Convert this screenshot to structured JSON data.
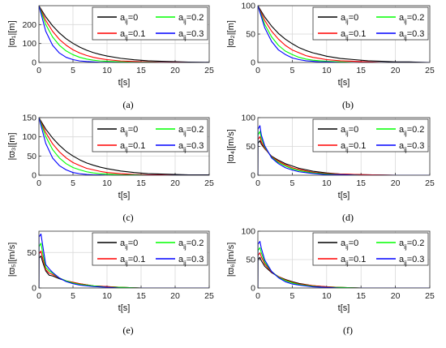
{
  "colors": {
    "a0": "#000000",
    "a01": "#ff0000",
    "a02": "#00ff00",
    "a03": "#0000ff",
    "grid": "#d8d8d8"
  },
  "chart_data": [
    {
      "type": "line",
      "caption": "(a)",
      "xlabel": "t[s]",
      "ylabel": "|ϖ₁|[m]",
      "xlim": [
        0,
        25
      ],
      "ylim": [
        0,
        300
      ],
      "xticks": [
        "0",
        "5",
        "10",
        "15",
        "20",
        "25"
      ],
      "yticks": [
        "0",
        "100",
        "200"
      ],
      "grid": true,
      "legend_position": "top-right",
      "series": [
        {
          "name": "a_ij=0",
          "color": "#000000",
          "x": [
            0,
            1,
            2,
            3,
            4,
            5,
            6,
            7,
            8,
            9,
            10,
            12,
            14,
            16,
            18,
            20,
            22,
            25
          ],
          "y": [
            300,
            241,
            194,
            156,
            125,
            101,
            81,
            65,
            52,
            42,
            34,
            22,
            14,
            9,
            6,
            4,
            2,
            1
          ]
        },
        {
          "name": "a_ij=0.1",
          "color": "#ff0000",
          "x": [
            0,
            1,
            2,
            3,
            4,
            5,
            6,
            7,
            8,
            9,
            10,
            12,
            14,
            16,
            18,
            20,
            22,
            25
          ],
          "y": [
            300,
            222,
            165,
            122,
            91,
            67,
            50,
            37,
            27,
            20,
            15,
            8,
            5,
            3,
            1,
            1,
            0,
            0
          ]
        },
        {
          "name": "a_ij=0.2",
          "color": "#00ff00",
          "x": [
            0,
            1,
            2,
            3,
            4,
            5,
            6,
            7,
            8,
            9,
            10,
            12,
            14,
            16,
            18,
            20,
            22,
            25
          ],
          "y": [
            300,
            201,
            135,
            91,
            61,
            41,
            27,
            18,
            12,
            8,
            6,
            3,
            1,
            1,
            0,
            0,
            0,
            0
          ]
        },
        {
          "name": "a_ij=0.3",
          "color": "#0000ff",
          "x": [
            0,
            1,
            2,
            3,
            4,
            5,
            6,
            7,
            8,
            9,
            10,
            12,
            14,
            16,
            18,
            20,
            22,
            25
          ],
          "y": [
            300,
            165,
            91,
            50,
            27,
            15,
            8,
            5,
            3,
            1,
            1,
            0,
            0,
            0,
            0,
            0,
            0,
            0
          ]
        }
      ]
    },
    {
      "type": "line",
      "caption": "(b)",
      "xlabel": "t[s]",
      "ylabel": "|ϖ₂|[m]",
      "xlim": [
        0,
        25
      ],
      "ylim": [
        0,
        100
      ],
      "xticks": [
        "0",
        "5",
        "10",
        "15",
        "20",
        "25"
      ],
      "yticks": [
        "0",
        "50",
        "100"
      ],
      "grid": true,
      "legend_position": "top-right",
      "series": [
        {
          "name": "a_ij=0",
          "color": "#000000",
          "x": [
            0,
            1,
            2,
            3,
            4,
            5,
            6,
            7,
            8,
            9,
            10,
            12,
            14,
            16,
            18,
            20,
            22,
            25
          ],
          "y": [
            100,
            80,
            64,
            51,
            41,
            33,
            26,
            21,
            17,
            14,
            11,
            7,
            5,
            3,
            2,
            1,
            1,
            0
          ]
        },
        {
          "name": "a_ij=0.1",
          "color": "#ff0000",
          "x": [
            0,
            1,
            2,
            3,
            4,
            5,
            6,
            7,
            8,
            9,
            10,
            12,
            14,
            16,
            18,
            20,
            22,
            25
          ],
          "y": [
            100,
            74,
            55,
            41,
            30,
            22,
            17,
            12,
            9,
            7,
            5,
            3,
            2,
            1,
            0,
            0,
            0,
            0
          ]
        },
        {
          "name": "a_ij=0.2",
          "color": "#00ff00",
          "x": [
            0,
            1,
            2,
            3,
            4,
            5,
            6,
            7,
            8,
            9,
            10,
            12,
            14,
            16,
            18,
            20,
            22,
            25
          ],
          "y": [
            100,
            67,
            45,
            30,
            20,
            14,
            9,
            6,
            4,
            3,
            2,
            1,
            0,
            0,
            0,
            0,
            0,
            0
          ]
        },
        {
          "name": "a_ij=0.3",
          "color": "#0000ff",
          "x": [
            0,
            1,
            2,
            3,
            4,
            5,
            6,
            7,
            8,
            9,
            10,
            12,
            14,
            16,
            18,
            20,
            22,
            25
          ],
          "y": [
            100,
            61,
            37,
            22,
            14,
            8,
            5,
            3,
            2,
            1,
            1,
            0,
            0,
            0,
            0,
            0,
            0,
            0
          ]
        }
      ]
    },
    {
      "type": "line",
      "caption": "(c)",
      "xlabel": "t[s]",
      "ylabel": "|ϖ₃|[m]",
      "xlim": [
        0,
        25
      ],
      "ylim": [
        0,
        150
      ],
      "xticks": [
        "0",
        "5",
        "10",
        "15",
        "20",
        "25"
      ],
      "yticks": [
        "0",
        "50",
        "100",
        "150"
      ],
      "grid": true,
      "legend_position": "top-right",
      "series": [
        {
          "name": "a_ij=0",
          "color": "#000000",
          "x": [
            0,
            1,
            2,
            3,
            4,
            5,
            6,
            7,
            8,
            9,
            10,
            12,
            14,
            16,
            18,
            20,
            22,
            25
          ],
          "y": [
            150,
            120,
            97,
            78,
            62,
            50,
            40,
            32,
            26,
            21,
            17,
            11,
            7,
            4,
            3,
            2,
            1,
            1
          ]
        },
        {
          "name": "a_ij=0.1",
          "color": "#ff0000",
          "x": [
            0,
            1,
            2,
            3,
            4,
            5,
            6,
            7,
            8,
            9,
            10,
            12,
            14,
            16,
            18,
            20,
            22,
            25
          ],
          "y": [
            150,
            111,
            82,
            61,
            45,
            33,
            25,
            18,
            14,
            10,
            7,
            4,
            2,
            1,
            1,
            0,
            0,
            0
          ]
        },
        {
          "name": "a_ij=0.2",
          "color": "#00ff00",
          "x": [
            0,
            1,
            2,
            3,
            4,
            5,
            6,
            7,
            8,
            9,
            10,
            12,
            14,
            16,
            18,
            20,
            22,
            25
          ],
          "y": [
            150,
            101,
            67,
            45,
            30,
            20,
            14,
            9,
            6,
            4,
            3,
            1,
            1,
            0,
            0,
            0,
            0,
            0
          ]
        },
        {
          "name": "a_ij=0.3",
          "color": "#0000ff",
          "x": [
            0,
            1,
            2,
            3,
            4,
            5,
            6,
            7,
            8,
            9,
            10,
            12,
            14,
            16,
            18,
            20,
            22,
            25
          ],
          "y": [
            150,
            83,
            45,
            25,
            14,
            7,
            4,
            2,
            1,
            1,
            0,
            0,
            0,
            0,
            0,
            0,
            0,
            0
          ]
        }
      ]
    },
    {
      "type": "line",
      "caption": "(d)",
      "xlabel": "t[s]",
      "ylabel": "|ϖ₄|[m/s]",
      "xlim": [
        0,
        25
      ],
      "ylim": [
        0,
        100
      ],
      "xticks": [
        "0",
        "5",
        "10",
        "15",
        "20",
        "25"
      ],
      "yticks": [
        "0",
        "50",
        "100"
      ],
      "grid": true,
      "legend_position": "top-right",
      "series": [
        {
          "name": "a_ij=0",
          "color": "#000000",
          "x": [
            0,
            0.01,
            0.3,
            0.5,
            1,
            2,
            3,
            4,
            5,
            6,
            8,
            10,
            12,
            15,
            20,
            25
          ],
          "y": [
            0,
            55,
            60,
            54,
            46,
            33,
            26,
            20,
            16,
            12,
            7,
            4,
            2,
            1,
            0,
            0
          ]
        },
        {
          "name": "a_ij=0.1",
          "color": "#ff0000",
          "x": [
            0,
            0.01,
            0.3,
            0.5,
            1,
            2,
            3,
            4,
            5,
            6,
            8,
            10,
            12,
            15,
            20,
            25
          ],
          "y": [
            0,
            62,
            67,
            58,
            47,
            32,
            24,
            18,
            13,
            10,
            5,
            3,
            2,
            1,
            0,
            0
          ]
        },
        {
          "name": "a_ij=0.2",
          "color": "#00ff00",
          "x": [
            0,
            0.01,
            0.3,
            0.5,
            1,
            2,
            3,
            4,
            5,
            6,
            8,
            10,
            12,
            15,
            20,
            25
          ],
          "y": [
            0,
            70,
            76,
            64,
            49,
            31,
            22,
            16,
            11,
            8,
            4,
            2,
            1,
            0,
            0,
            0
          ]
        },
        {
          "name": "a_ij=0.3",
          "color": "#0000ff",
          "x": [
            0,
            0.01,
            0.3,
            0.5,
            1,
            2,
            3,
            4,
            5,
            6,
            8,
            10,
            12,
            15,
            20,
            25
          ],
          "y": [
            0,
            80,
            86,
            70,
            51,
            30,
            20,
            13,
            9,
            6,
            3,
            1,
            1,
            0,
            0,
            0
          ]
        }
      ]
    },
    {
      "type": "line",
      "caption": "(e)",
      "xlabel": "t[s]",
      "ylabel": "|ϖ₅|[m/s]",
      "xlim": [
        0,
        25
      ],
      "ylim": [
        0,
        80
      ],
      "xticks": [
        "0",
        "5",
        "10",
        "15",
        "20",
        "25"
      ],
      "yticks": [
        "0",
        "50"
      ],
      "grid": true,
      "legend_position": "top-right",
      "series": [
        {
          "name": "a_ij=0",
          "color": "#000000",
          "x": [
            0,
            0.01,
            0.3,
            0.6,
            1,
            1.5,
            2,
            3,
            4,
            5,
            6,
            8,
            10,
            12,
            15,
            20,
            25
          ],
          "y": [
            0,
            42,
            45,
            35,
            24,
            18,
            17,
            13,
            10,
            8,
            6,
            3,
            2,
            1,
            0,
            0,
            0
          ]
        },
        {
          "name": "a_ij=0.1",
          "color": "#ff0000",
          "x": [
            0,
            0.01,
            0.3,
            0.6,
            1,
            1.5,
            2,
            3,
            4,
            5,
            6,
            8,
            10,
            12,
            15,
            20,
            25
          ],
          "y": [
            0,
            48,
            52,
            40,
            26,
            21,
            19,
            14,
            10,
            8,
            6,
            3,
            2,
            1,
            0,
            0,
            0
          ]
        },
        {
          "name": "a_ij=0.2",
          "color": "#00ff00",
          "x": [
            0,
            0.01,
            0.3,
            0.6,
            1,
            1.5,
            2,
            3,
            4,
            5,
            6,
            8,
            10,
            12,
            15,
            20,
            25
          ],
          "y": [
            0,
            58,
            63,
            47,
            29,
            24,
            21,
            14,
            10,
            7,
            5,
            3,
            1,
            1,
            0,
            0,
            0
          ]
        },
        {
          "name": "a_ij=0.3",
          "color": "#0000ff",
          "x": [
            0,
            0.01,
            0.3,
            0.6,
            1,
            1.5,
            2,
            3,
            4,
            5,
            6,
            8,
            10,
            12,
            15,
            20,
            25
          ],
          "y": [
            0,
            72,
            76,
            57,
            33,
            27,
            22,
            14,
            9,
            6,
            4,
            2,
            1,
            0,
            0,
            0,
            0
          ]
        }
      ]
    },
    {
      "type": "line",
      "caption": "(f)",
      "xlabel": "t[s]",
      "ylabel": "|ϖ₆|[m/s]",
      "xlim": [
        0,
        25
      ],
      "ylim": [
        0,
        100
      ],
      "xticks": [
        "0",
        "5",
        "10",
        "15",
        "20",
        "25"
      ],
      "yticks": [
        "0",
        "50",
        "100"
      ],
      "grid": true,
      "legend_position": "top-right",
      "series": [
        {
          "name": "a_ij=0",
          "color": "#000000",
          "x": [
            0,
            0.01,
            0.3,
            0.5,
            1,
            2,
            3,
            4,
            5,
            6,
            8,
            10,
            12,
            15,
            20,
            25
          ],
          "y": [
            0,
            50,
            54,
            48,
            38,
            27,
            20,
            15,
            11,
            8,
            4,
            2,
            1,
            0,
            0,
            0
          ]
        },
        {
          "name": "a_ij=0.1",
          "color": "#ff0000",
          "x": [
            0,
            0.01,
            0.3,
            0.5,
            1,
            2,
            3,
            4,
            5,
            6,
            8,
            10,
            12,
            15,
            20,
            25
          ],
          "y": [
            0,
            57,
            62,
            55,
            42,
            28,
            20,
            14,
            10,
            7,
            4,
            2,
            1,
            0,
            0,
            0
          ]
        },
        {
          "name": "a_ij=0.2",
          "color": "#00ff00",
          "x": [
            0,
            0.01,
            0.3,
            0.5,
            1,
            2,
            3,
            4,
            5,
            6,
            8,
            10,
            12,
            15,
            20,
            25
          ],
          "y": [
            0,
            66,
            71,
            62,
            45,
            29,
            19,
            13,
            9,
            6,
            3,
            1,
            1,
            0,
            0,
            0
          ]
        },
        {
          "name": "a_ij=0.3",
          "color": "#0000ff",
          "x": [
            0,
            0.01,
            0.3,
            0.5,
            1,
            2,
            3,
            4,
            5,
            6,
            8,
            10,
            12,
            15,
            20,
            25
          ],
          "y": [
            0,
            77,
            82,
            70,
            49,
            29,
            18,
            11,
            7,
            5,
            2,
            1,
            0,
            0,
            0,
            0
          ]
        }
      ]
    }
  ]
}
